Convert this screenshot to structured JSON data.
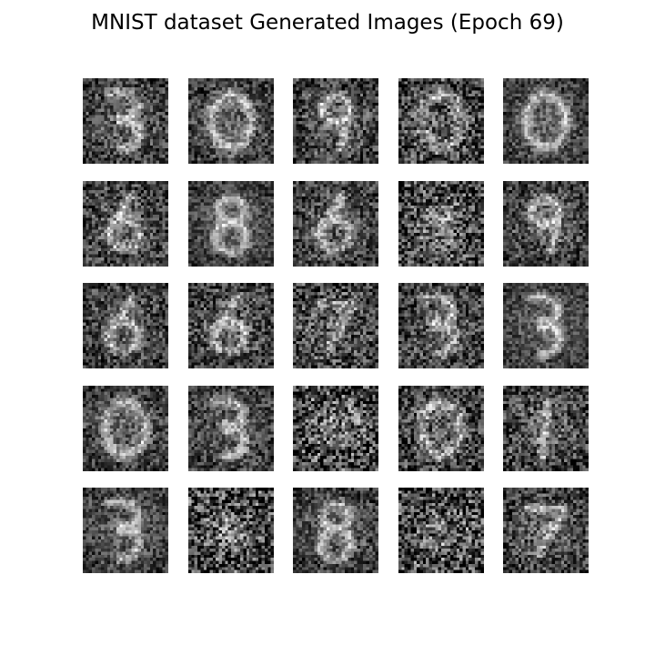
{
  "figure": {
    "title": "MNIST dataset Generated Images (Epoch 69)"
  },
  "grid": {
    "rows": 5,
    "cols": 5,
    "images": [
      {
        "digit": "3",
        "noise": 0.55
      },
      {
        "digit": "0",
        "noise": 0.5
      },
      {
        "digit": "9",
        "noise": 0.6
      },
      {
        "digit": "0",
        "noise": 0.75
      },
      {
        "digit": "0",
        "noise": 0.45
      },
      {
        "digit": "6",
        "noise": 0.6
      },
      {
        "digit": "8",
        "noise": 0.4
      },
      {
        "digit": "6",
        "noise": 0.55
      },
      {
        "digit": "blob",
        "noise": 0.85
      },
      {
        "digit": "9",
        "noise": 0.55
      },
      {
        "digit": "6",
        "noise": 0.55
      },
      {
        "digit": "6",
        "noise": 0.6
      },
      {
        "digit": "7",
        "noise": 0.7
      },
      {
        "digit": "3",
        "noise": 0.6
      },
      {
        "digit": "3",
        "noise": 0.4
      },
      {
        "digit": "0",
        "noise": 0.5
      },
      {
        "digit": "3",
        "noise": 0.5
      },
      {
        "digit": "blob",
        "noise": 0.9
      },
      {
        "digit": "0",
        "noise": 0.65
      },
      {
        "digit": "1",
        "noise": 0.65
      },
      {
        "digit": "3",
        "noise": 0.45
      },
      {
        "digit": "blob",
        "noise": 0.9
      },
      {
        "digit": "8",
        "noise": 0.5
      },
      {
        "digit": "blob",
        "noise": 0.9
      },
      {
        "digit": "7",
        "noise": 0.6
      }
    ]
  }
}
